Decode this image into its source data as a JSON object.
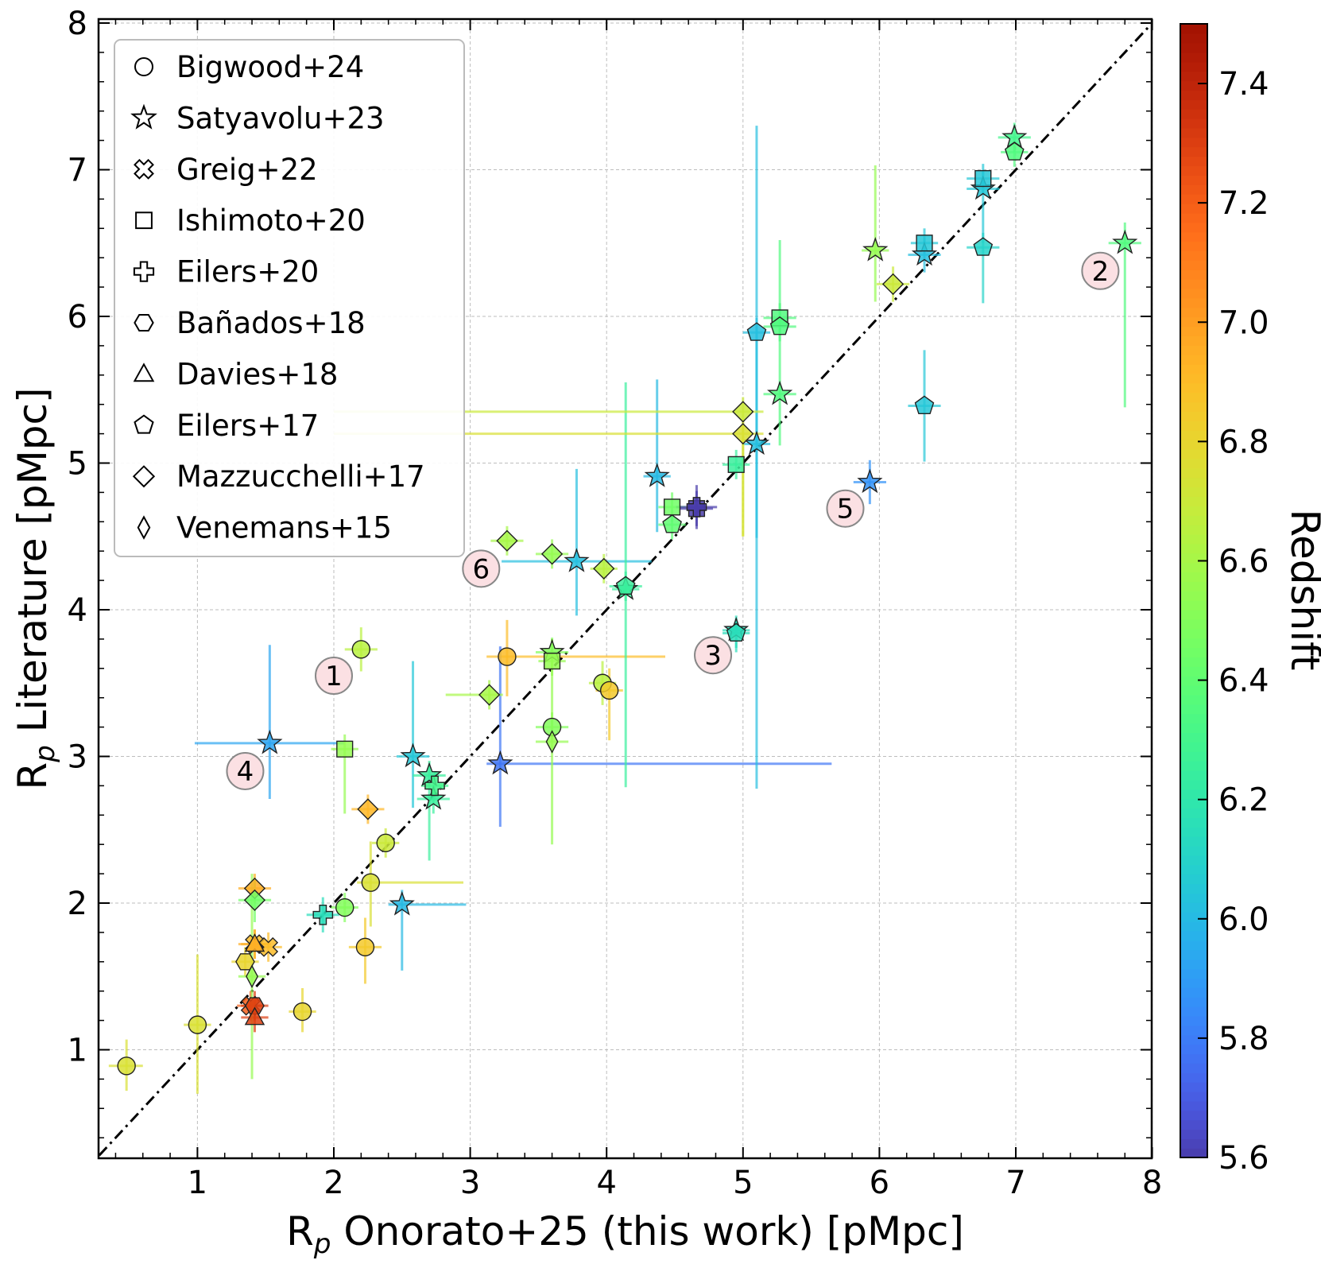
{
  "chart_data": {
    "type": "scatter",
    "title": "",
    "xlabel": "R_p Onorato+25 (this work) [pMpc]",
    "ylabel": "R_p Literature [pMpc]",
    "xlabel_parts": {
      "main": "R",
      "sub": "p",
      "rest": " Onorato+25 (this work) [pMpc]"
    },
    "ylabel_parts": {
      "main": "R",
      "sub": "p",
      "rest": " Literature [pMpc]"
    },
    "xlim": [
      0.28,
      8.0
    ],
    "ylim": [
      0.3,
      8.0
    ],
    "xticks": [
      "1",
      "2",
      "3",
      "4",
      "5",
      "6",
      "7",
      "8"
    ],
    "yticks": [
      "1",
      "2",
      "3",
      "4",
      "5",
      "6",
      "7",
      "8"
    ],
    "grid": true,
    "one_to_one_line": true,
    "colorbar": {
      "label": "Redshift",
      "zmin": 5.6,
      "zmax": 7.5,
      "ticks": [
        "5.6",
        "5.8",
        "6.0",
        "6.2",
        "6.4",
        "6.6",
        "6.8",
        "7.0",
        "7.2",
        "7.4"
      ],
      "colormap": "turbo"
    },
    "legend": {
      "placement": "top-left",
      "entries": [
        {
          "label": "Bigwood+24",
          "marker": "circle"
        },
        {
          "label": "Satyavolu+23",
          "marker": "star"
        },
        {
          "label": "Greig+22",
          "marker": "X"
        },
        {
          "label": "Ishimoto+20",
          "marker": "square"
        },
        {
          "label": "Eilers+20",
          "marker": "plus"
        },
        {
          "label": "Bañados+18",
          "marker": "hexagon"
        },
        {
          "label": "Davies+18",
          "marker": "triangle"
        },
        {
          "label": "Eilers+17",
          "marker": "pentagon"
        },
        {
          "label": "Mazzucchelli+17",
          "marker": "diamond"
        },
        {
          "label": "Venemans+15",
          "marker": "thin-diamond"
        }
      ]
    },
    "annotations": [
      {
        "label": "1",
        "x": 2.0,
        "y": 3.55
      },
      {
        "label": "2",
        "x": 7.62,
        "y": 6.31
      },
      {
        "label": "3",
        "x": 4.78,
        "y": 3.69
      },
      {
        "label": "4",
        "x": 1.35,
        "y": 2.9
      },
      {
        "label": "5",
        "x": 5.75,
        "y": 4.69
      },
      {
        "label": "6",
        "x": 3.08,
        "y": 4.28
      }
    ],
    "points": [
      {
        "m": "circle",
        "x": 0.48,
        "y": 0.89,
        "z": 6.75,
        "xl": 0.13,
        "xh": 0.12,
        "yl": 0.17,
        "yh": 0.18
      },
      {
        "m": "circle",
        "x": 1.0,
        "y": 1.17,
        "z": 6.75,
        "xl": 0.1,
        "xh": 0.1,
        "yl": 0.47,
        "yh": 0.48
      },
      {
        "m": "circle",
        "x": 1.77,
        "y": 1.26,
        "z": 6.8,
        "xl": 0.1,
        "xh": 0.1,
        "yl": 0.14,
        "yh": 0.16
      },
      {
        "m": "circle",
        "x": 2.23,
        "y": 1.7,
        "z": 6.85,
        "xl": 0.12,
        "xh": 0.12,
        "yl": 0.25,
        "yh": 0.2
      },
      {
        "m": "circle",
        "x": 2.08,
        "y": 1.97,
        "z": 6.5,
        "xl": 0.1,
        "xh": 0.1,
        "yl": 0.1,
        "yh": 0.1
      },
      {
        "m": "circle",
        "x": 2.27,
        "y": 2.14,
        "z": 6.75,
        "xl": 0.1,
        "xh": 0.68,
        "yl": 0.3,
        "yh": 0.28
      },
      {
        "m": "circle",
        "x": 2.38,
        "y": 2.41,
        "z": 6.7,
        "xl": 0.1,
        "xh": 0.1,
        "yl": 0.1,
        "yh": 0.1
      },
      {
        "m": "circle",
        "x": 2.2,
        "y": 3.73,
        "z": 6.65,
        "xl": 0.12,
        "xh": 0.12,
        "yl": 0.15,
        "yh": 0.15
      },
      {
        "m": "circle",
        "x": 3.27,
        "y": 3.68,
        "z": 6.9,
        "xl": 0.15,
        "xh": 1.16,
        "yl": 0.27,
        "yh": 0.25
      },
      {
        "m": "circle",
        "x": 3.97,
        "y": 3.5,
        "z": 6.65,
        "xl": 0.1,
        "xh": 0.1,
        "yl": 0.15,
        "yh": 0.15
      },
      {
        "m": "circle",
        "x": 4.02,
        "y": 3.45,
        "z": 6.85,
        "xl": 0.1,
        "xh": 0.1,
        "yl": 0.34,
        "yh": 0.15
      },
      {
        "m": "circle",
        "x": 3.6,
        "y": 3.2,
        "z": 6.5,
        "xl": 0.12,
        "xh": 0.12,
        "yl": 0.1,
        "yh": 0.1
      },
      {
        "m": "star",
        "x": 1.53,
        "y": 3.09,
        "z": 5.93,
        "xl": 0.55,
        "xh": 0.55,
        "yl": 0.38,
        "yh": 0.67
      },
      {
        "m": "star",
        "x": 2.5,
        "y": 1.99,
        "z": 6.0,
        "xl": 0.1,
        "xh": 0.47,
        "yl": 0.45,
        "yh": 0.1
      },
      {
        "m": "star",
        "x": 2.58,
        "y": 3.0,
        "z": 6.05,
        "xl": 0.12,
        "xh": 0.12,
        "yl": 0.35,
        "yh": 0.65
      },
      {
        "m": "star",
        "x": 2.7,
        "y": 2.87,
        "z": 6.25,
        "xl": 0.12,
        "xh": 0.12,
        "yl": 0.58,
        "yh": 0.1
      },
      {
        "m": "star",
        "x": 2.73,
        "y": 2.71,
        "z": 6.25,
        "xl": 0.12,
        "xh": 0.12,
        "yl": 0.1,
        "yh": 0.1
      },
      {
        "m": "star",
        "x": 3.22,
        "y": 2.95,
        "z": 5.78,
        "xl": 0.1,
        "xh": 2.43,
        "yl": 0.43,
        "yh": 0.8
      },
      {
        "m": "star",
        "x": 3.6,
        "y": 3.71,
        "z": 6.5,
        "xl": 0.12,
        "xh": 0.12,
        "yl": 0.1,
        "yh": 0.1
      },
      {
        "m": "star",
        "x": 3.78,
        "y": 4.33,
        "z": 6.02,
        "xl": 0.55,
        "xh": 0.55,
        "yl": 0.37,
        "yh": 0.63
      },
      {
        "m": "star",
        "x": 4.37,
        "y": 4.91,
        "z": 6.0,
        "xl": 0.1,
        "xh": 0.1,
        "yl": 0.38,
        "yh": 0.66
      },
      {
        "m": "star",
        "x": 4.14,
        "y": 4.14,
        "z": 6.25,
        "xl": 0.1,
        "xh": 0.1,
        "yl": 1.35,
        "yh": 1.41
      },
      {
        "m": "star",
        "x": 5.1,
        "y": 5.13,
        "z": 6.02,
        "xl": 0.1,
        "xh": 0.1,
        "yl": 2.35,
        "yh": 2.17
      },
      {
        "m": "star",
        "x": 5.27,
        "y": 5.47,
        "z": 6.35,
        "xl": 0.12,
        "xh": 0.12,
        "yl": 0.35,
        "yh": 1.05
      },
      {
        "m": "star",
        "x": 4.95,
        "y": 3.86,
        "z": 6.15,
        "xl": 0.1,
        "xh": 0.1,
        "yl": 0.15,
        "yh": 0.1
      },
      {
        "m": "star",
        "x": 5.93,
        "y": 4.87,
        "z": 5.87,
        "xl": 0.12,
        "xh": 0.12,
        "yl": 0.15,
        "yh": 0.15
      },
      {
        "m": "star",
        "x": 5.97,
        "y": 6.45,
        "z": 6.55,
        "xl": 0.1,
        "xh": 0.1,
        "yl": 0.35,
        "yh": 0.58
      },
      {
        "m": "star",
        "x": 6.33,
        "y": 6.42,
        "z": 6.02,
        "xl": 0.12,
        "xh": 0.12,
        "yl": 0.12,
        "yh": 0.12
      },
      {
        "m": "star",
        "x": 6.76,
        "y": 6.87,
        "z": 6.05,
        "xl": 0.12,
        "xh": 0.12,
        "yl": 0.37,
        "yh": 0.12
      },
      {
        "m": "star",
        "x": 6.99,
        "y": 7.22,
        "z": 6.3,
        "xl": 0.12,
        "xh": 0.12,
        "yl": 0.1,
        "yh": 0.1
      },
      {
        "m": "star",
        "x": 7.8,
        "y": 6.5,
        "z": 6.35,
        "xl": 0.12,
        "xh": 0.12,
        "yl": 1.12,
        "yh": 0.14
      },
      {
        "m": "X",
        "x": 1.42,
        "y": 1.72,
        "z": 6.9,
        "xl": 0.1,
        "xh": 0.1,
        "yl": 0.1,
        "yh": 0.1
      },
      {
        "m": "X",
        "x": 1.52,
        "y": 1.7,
        "z": 6.9,
        "xl": 0.1,
        "xh": 0.1,
        "yl": 0.1,
        "yh": 0.1
      },
      {
        "m": "X",
        "x": 1.39,
        "y": 1.3,
        "z": 7.2,
        "xl": 0.1,
        "xh": 0.1,
        "yl": 0.1,
        "yh": 0.1
      },
      {
        "m": "square",
        "x": 2.08,
        "y": 3.05,
        "z": 6.55,
        "xl": 0.1,
        "xh": 0.1,
        "yl": 0.44,
        "yh": 0.1
      },
      {
        "m": "square",
        "x": 3.6,
        "y": 3.65,
        "z": 6.55,
        "xl": 0.1,
        "xh": 0.1,
        "yl": 0.1,
        "yh": 0.1
      },
      {
        "m": "square",
        "x": 4.48,
        "y": 4.7,
        "z": 6.45,
        "xl": 0.1,
        "xh": 0.1,
        "yl": 0.1,
        "yh": 0.1
      },
      {
        "m": "square",
        "x": 4.95,
        "y": 4.99,
        "z": 6.25,
        "xl": 0.1,
        "xh": 0.1,
        "yl": 0.1,
        "yh": 0.1
      },
      {
        "m": "square",
        "x": 5.27,
        "y": 5.99,
        "z": 6.35,
        "xl": 0.12,
        "xh": 0.12,
        "yl": 0.1,
        "yh": 0.1
      },
      {
        "m": "square",
        "x": 6.33,
        "y": 6.5,
        "z": 6.05,
        "xl": 0.1,
        "xh": 0.1,
        "yl": 0.1,
        "yh": 0.1
      },
      {
        "m": "square",
        "x": 6.76,
        "y": 6.94,
        "z": 6.05,
        "xl": 0.12,
        "xh": 0.12,
        "yl": 0.1,
        "yh": 0.1
      },
      {
        "m": "square",
        "x": 4.66,
        "y": 4.69,
        "z": 5.6,
        "xl": 0.12,
        "xh": 0.12,
        "yl": 0.12,
        "yh": 0.12
      },
      {
        "m": "plus",
        "x": 1.92,
        "y": 1.92,
        "z": 6.15,
        "xl": 0.12,
        "xh": 0.12,
        "yl": 0.12,
        "yh": 0.12
      },
      {
        "m": "plus",
        "x": 2.74,
        "y": 2.8,
        "z": 6.3,
        "xl": 0.1,
        "xh": 0.1,
        "yl": 0.1,
        "yh": 0.1
      },
      {
        "m": "plus",
        "x": 4.66,
        "y": 4.7,
        "z": 5.6,
        "xl": 0.15,
        "xh": 0.15,
        "yl": 0.15,
        "yh": 0.15
      },
      {
        "m": "hexagon",
        "x": 1.42,
        "y": 1.3,
        "z": 7.3,
        "xl": 0.1,
        "xh": 0.1,
        "yl": 0.1,
        "yh": 0.1
      },
      {
        "m": "hexagon",
        "x": 1.35,
        "y": 1.6,
        "z": 6.8,
        "xl": 0.1,
        "xh": 0.1,
        "yl": 0.1,
        "yh": 0.1
      },
      {
        "m": "triangle",
        "x": 1.42,
        "y": 1.72,
        "z": 6.95,
        "xl": 0.12,
        "xh": 0.12,
        "yl": 0.1,
        "yh": 0.1
      },
      {
        "m": "triangle",
        "x": 1.42,
        "y": 1.22,
        "z": 7.3,
        "xl": 0.1,
        "xh": 0.1,
        "yl": 0.1,
        "yh": 0.1
      },
      {
        "m": "pentagon",
        "x": 4.48,
        "y": 4.58,
        "z": 6.4,
        "xl": 0.1,
        "xh": 0.1,
        "yl": 0.1,
        "yh": 0.1
      },
      {
        "m": "pentagon",
        "x": 4.14,
        "y": 4.16,
        "z": 6.25,
        "xl": 0.12,
        "xh": 0.12,
        "yl": 0.1,
        "yh": 0.1
      },
      {
        "m": "pentagon",
        "x": 5.1,
        "y": 5.89,
        "z": 6.02,
        "xl": 0.1,
        "xh": 0.1,
        "yl": 1.4,
        "yh": 0.1
      },
      {
        "m": "pentagon",
        "x": 5.27,
        "y": 5.93,
        "z": 6.35,
        "xl": 0.12,
        "xh": 0.12,
        "yl": 0.1,
        "yh": 0.1
      },
      {
        "m": "pentagon",
        "x": 4.95,
        "y": 3.84,
        "z": 6.15,
        "xl": 0.1,
        "xh": 0.1,
        "yl": 0.1,
        "yh": 0.1
      },
      {
        "m": "pentagon",
        "x": 6.33,
        "y": 5.39,
        "z": 6.05,
        "xl": 0.12,
        "xh": 0.12,
        "yl": 0.38,
        "yh": 0.38
      },
      {
        "m": "pentagon",
        "x": 6.76,
        "y": 6.47,
        "z": 6.1,
        "xl": 0.12,
        "xh": 0.12,
        "yl": 0.38,
        "yh": 0.1
      },
      {
        "m": "pentagon",
        "x": 6.99,
        "y": 7.12,
        "z": 6.35,
        "xl": 0.1,
        "xh": 0.1,
        "yl": 0.1,
        "yh": 0.1
      },
      {
        "m": "diamond",
        "x": 1.42,
        "y": 2.1,
        "z": 6.95,
        "xl": 0.12,
        "xh": 0.12,
        "yl": 0.1,
        "yh": 0.1
      },
      {
        "m": "diamond",
        "x": 1.42,
        "y": 2.02,
        "z": 6.45,
        "xl": 0.12,
        "xh": 0.12,
        "yl": 0.15,
        "yh": 0.15
      },
      {
        "m": "diamond",
        "x": 2.25,
        "y": 2.64,
        "z": 6.92,
        "xl": 0.12,
        "xh": 0.12,
        "yl": 0.1,
        "yh": 0.1
      },
      {
        "m": "diamond",
        "x": 3.14,
        "y": 3.42,
        "z": 6.6,
        "xl": 0.32,
        "xh": 0.1,
        "yl": 0.1,
        "yh": 0.1
      },
      {
        "m": "diamond",
        "x": 3.27,
        "y": 4.47,
        "z": 6.6,
        "xl": 0.12,
        "xh": 0.12,
        "yl": 0.1,
        "yh": 0.1
      },
      {
        "m": "diamond",
        "x": 3.6,
        "y": 4.38,
        "z": 6.55,
        "xl": 0.12,
        "xh": 0.12,
        "yl": 0.1,
        "yh": 0.1
      },
      {
        "m": "diamond",
        "x": 3.98,
        "y": 4.28,
        "z": 6.65,
        "xl": 0.1,
        "xh": 0.1,
        "yl": 0.1,
        "yh": 0.1
      },
      {
        "m": "diamond",
        "x": 5.0,
        "y": 5.35,
        "z": 6.7,
        "xl": 3.0,
        "xh": 0.15,
        "yl": 0.85,
        "yh": 0.1
      },
      {
        "m": "diamond",
        "x": 5.0,
        "y": 5.2,
        "z": 6.75,
        "xl": 3.0,
        "xh": 0.15,
        "yl": 0.7,
        "yh": 0.1
      },
      {
        "m": "diamond",
        "x": 6.1,
        "y": 6.22,
        "z": 6.7,
        "xl": 0.12,
        "xh": 0.12,
        "yl": 0.12,
        "yh": 0.12
      },
      {
        "m": "thin-diamond",
        "x": 1.4,
        "y": 1.5,
        "z": 6.55,
        "xl": 0.1,
        "xh": 0.1,
        "yl": 0.7,
        "yh": 0.7
      },
      {
        "m": "thin-diamond",
        "x": 3.6,
        "y": 3.1,
        "z": 6.55,
        "xl": 0.12,
        "xh": 0.12,
        "yl": 0.7,
        "yh": 0.7
      }
    ]
  }
}
